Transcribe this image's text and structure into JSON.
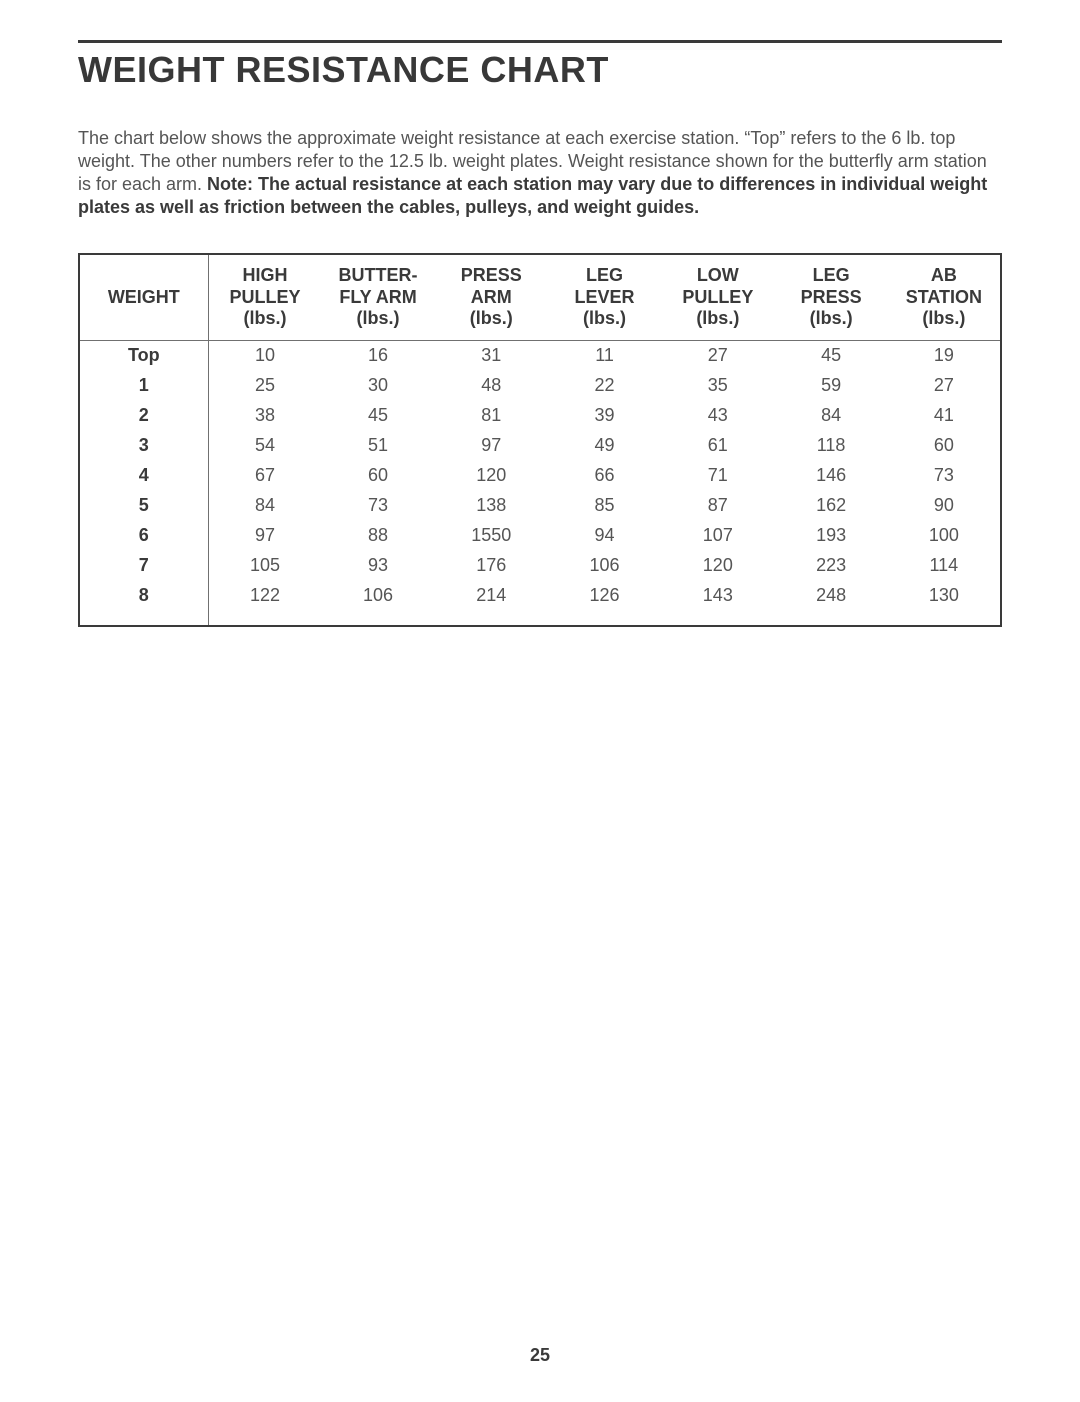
{
  "title": "WEIGHT RESISTANCE CHART",
  "intro": {
    "plain1": "The chart below shows the approximate weight resistance at each exercise station. “Top” refers to the 6 lb. top weight. The other numbers refer to the 12.5 lb. weight plates. Weight resistance shown for the butterfly arm station is for each arm. ",
    "bold": "Note: The actual resistance at each station may vary due to differences in individual weight plates as well as friction between the cables, pulleys, and weight guides."
  },
  "table": {
    "columns": [
      "WEIGHT",
      "HIGH PULLEY (lbs.)",
      "BUTTER- FLY ARM (lbs.)",
      "PRESS ARM (lbs.)",
      "LEG LEVER (lbs.)",
      "LOW PULLEY (lbs.)",
      "LEG PRESS (lbs.)",
      "AB STATION (lbs.)"
    ],
    "headers": {
      "c0": {
        "l1": "WEIGHT",
        "l2": "",
        "l3": ""
      },
      "c1": {
        "l1": "HIGH",
        "l2": "PULLEY",
        "l3": "(lbs.)"
      },
      "c2": {
        "l1": "BUTTER-",
        "l2": "FLY ARM",
        "l3": "(lbs.)"
      },
      "c3": {
        "l1": "PRESS",
        "l2": "ARM",
        "l3": "(lbs.)"
      },
      "c4": {
        "l1": "LEG",
        "l2": "LEVER",
        "l3": "(lbs.)"
      },
      "c5": {
        "l1": "LOW",
        "l2": "PULLEY",
        "l3": "(lbs.)"
      },
      "c6": {
        "l1": "LEG",
        "l2": "PRESS",
        "l3": "(lbs.)"
      },
      "c7": {
        "l1": "AB",
        "l2": "STATION",
        "l3": "(lbs.)"
      }
    },
    "rows": [
      {
        "w": "Top",
        "v": [
          "10",
          "16",
          "31",
          "11",
          "27",
          "45",
          "19"
        ]
      },
      {
        "w": "1",
        "v": [
          "25",
          "30",
          "48",
          "22",
          "35",
          "59",
          "27"
        ]
      },
      {
        "w": "2",
        "v": [
          "38",
          "45",
          "81",
          "39",
          "43",
          "84",
          "41"
        ]
      },
      {
        "w": "3",
        "v": [
          "54",
          "51",
          "97",
          "49",
          "61",
          "118",
          "60"
        ]
      },
      {
        "w": "4",
        "v": [
          "67",
          "60",
          "120",
          "66",
          "71",
          "146",
          "73"
        ]
      },
      {
        "w": "5",
        "v": [
          "84",
          "73",
          "138",
          "85",
          "87",
          "162",
          "90"
        ]
      },
      {
        "w": "6",
        "v": [
          "97",
          "88",
          "1550",
          "94",
          "107",
          "193",
          "100"
        ]
      },
      {
        "w": "7",
        "v": [
          "105",
          "93",
          "176",
          "106",
          "120",
          "223",
          "114"
        ]
      },
      {
        "w": "8",
        "v": [
          "122",
          "106",
          "214",
          "126",
          "143",
          "248",
          "130"
        ]
      }
    ],
    "border_color": "#3a3a3a",
    "divider_color": "#707070",
    "text_color": "#555555",
    "header_color": "#3a3a3a"
  },
  "page_number": "25"
}
